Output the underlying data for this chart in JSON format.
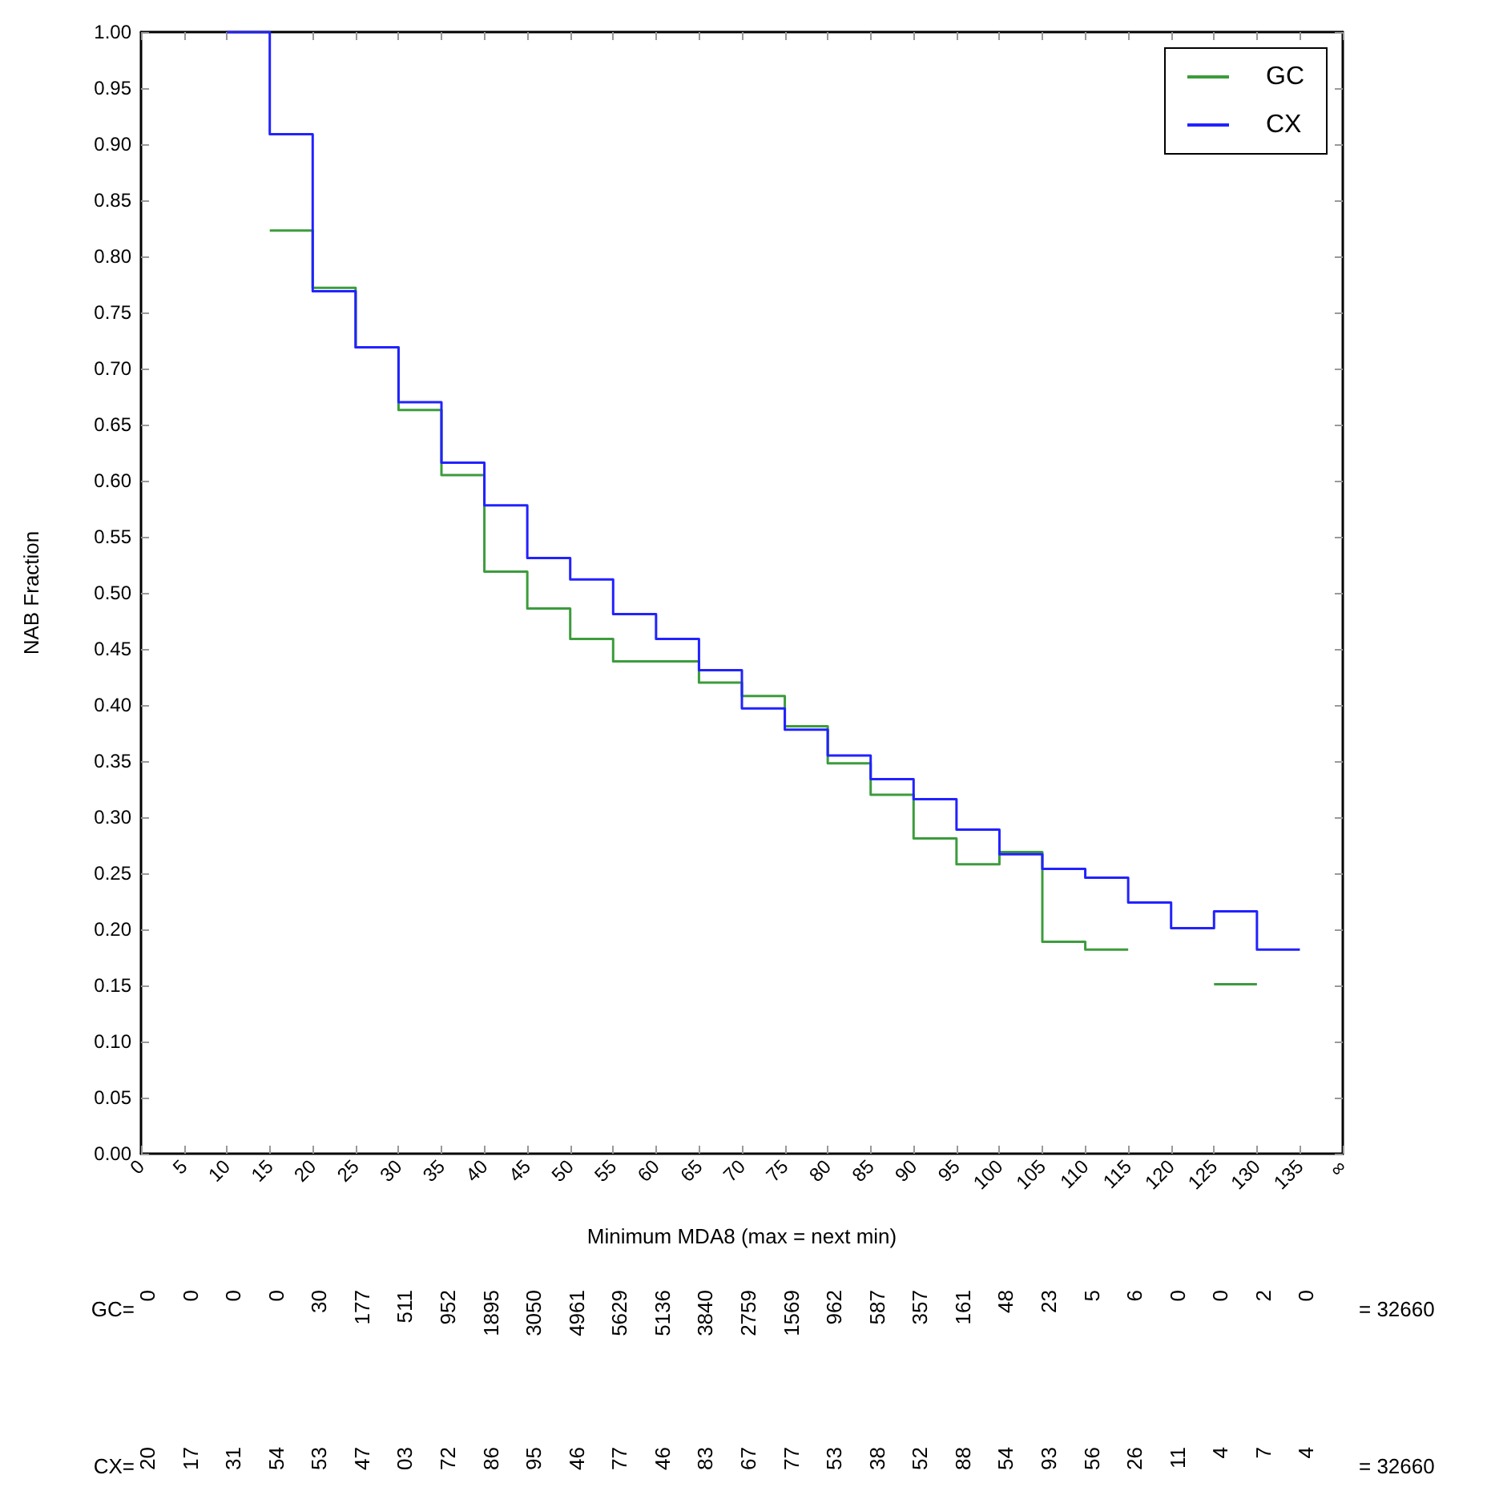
{
  "chart_data": {
    "type": "step",
    "xlabel": "Minimum MDA8 (max = next min)",
    "ylabel": "NAB Fraction",
    "xlim": [
      0,
      140
    ],
    "ylim": [
      0,
      1
    ],
    "xticks": [
      0,
      5,
      10,
      15,
      20,
      25,
      30,
      35,
      40,
      45,
      50,
      55,
      60,
      65,
      70,
      75,
      80,
      85,
      90,
      95,
      100,
      105,
      110,
      115,
      120,
      125,
      130,
      135,
      {
        "value": 140,
        "label": "∞"
      }
    ],
    "yticks": [
      {
        "value": 0,
        "label": "0.00"
      },
      {
        "value": 0.05,
        "label": "0.05"
      },
      {
        "value": 0.1,
        "label": "0.10"
      },
      {
        "value": 0.15,
        "label": "0.15"
      },
      {
        "value": 0.2,
        "label": "0.20"
      },
      {
        "value": 0.25,
        "label": "0.25"
      },
      {
        "value": 0.3,
        "label": "0.30"
      },
      {
        "value": 0.35,
        "label": "0.35"
      },
      {
        "value": 0.4,
        "label": "0.40"
      },
      {
        "value": 0.45,
        "label": "0.45"
      },
      {
        "value": 0.5,
        "label": "0.50"
      },
      {
        "value": 0.55,
        "label": "0.55"
      },
      {
        "value": 0.6,
        "label": "0.60"
      },
      {
        "value": 0.65,
        "label": "0.65"
      },
      {
        "value": 0.7,
        "label": "0.70"
      },
      {
        "value": 0.75,
        "label": "0.75"
      },
      {
        "value": 0.8,
        "label": "0.80"
      },
      {
        "value": 0.85,
        "label": "0.85"
      },
      {
        "value": 0.9,
        "label": "0.90"
      },
      {
        "value": 0.95,
        "label": "0.95"
      },
      {
        "value": 1,
        "label": "1.00"
      }
    ],
    "grid": false,
    "legend": "top right",
    "series": [
      {
        "name": "GC",
        "color": "#3c9c3c",
        "x": [
          15,
          20,
          25,
          30,
          35,
          40,
          45,
          50,
          55,
          60,
          65,
          70,
          75,
          80,
          85,
          90,
          95,
          100,
          105,
          110,
          115,
          120,
          125,
          130
        ],
        "values": [
          0.823,
          0.772,
          0.719,
          0.663,
          0.605,
          0.519,
          0.486,
          0.459,
          0.439,
          0.439,
          0.42,
          0.408,
          0.381,
          0.348,
          0.32,
          0.281,
          0.258,
          0.269,
          0.189,
          0.182,
          0.182,
          null,
          0.151,
          0.151
        ]
      },
      {
        "name": "CX",
        "color": "#2222ff",
        "x": [
          10,
          15,
          20,
          25,
          30,
          35,
          40,
          45,
          50,
          55,
          60,
          65,
          70,
          75,
          80,
          85,
          90,
          95,
          100,
          105,
          110,
          115,
          120,
          125,
          130,
          135
        ],
        "values": [
          1.0,
          0.909,
          0.769,
          0.719,
          0.67,
          0.616,
          0.578,
          0.531,
          0.512,
          0.481,
          0.459,
          0.431,
          0.397,
          0.378,
          0.355,
          0.334,
          0.316,
          0.289,
          0.267,
          0.254,
          0.246,
          0.224,
          0.201,
          0.216,
          0.182,
          0.182
        ]
      }
    ],
    "annotations": [
      "GC= 0 0 0 0 30 177 511 952 1895 3050 4961 5629 5136 3840 2759 1569 962 587 357 161 48 23 5 6 0 0 2 0 = 32660",
      "CX= 20 17 31 54 53 47 03 72 86 95 46 77 46 83 67 77 53 38 52 88 54 93 56 26 11 4 7 4 = 32660"
    ]
  }
}
